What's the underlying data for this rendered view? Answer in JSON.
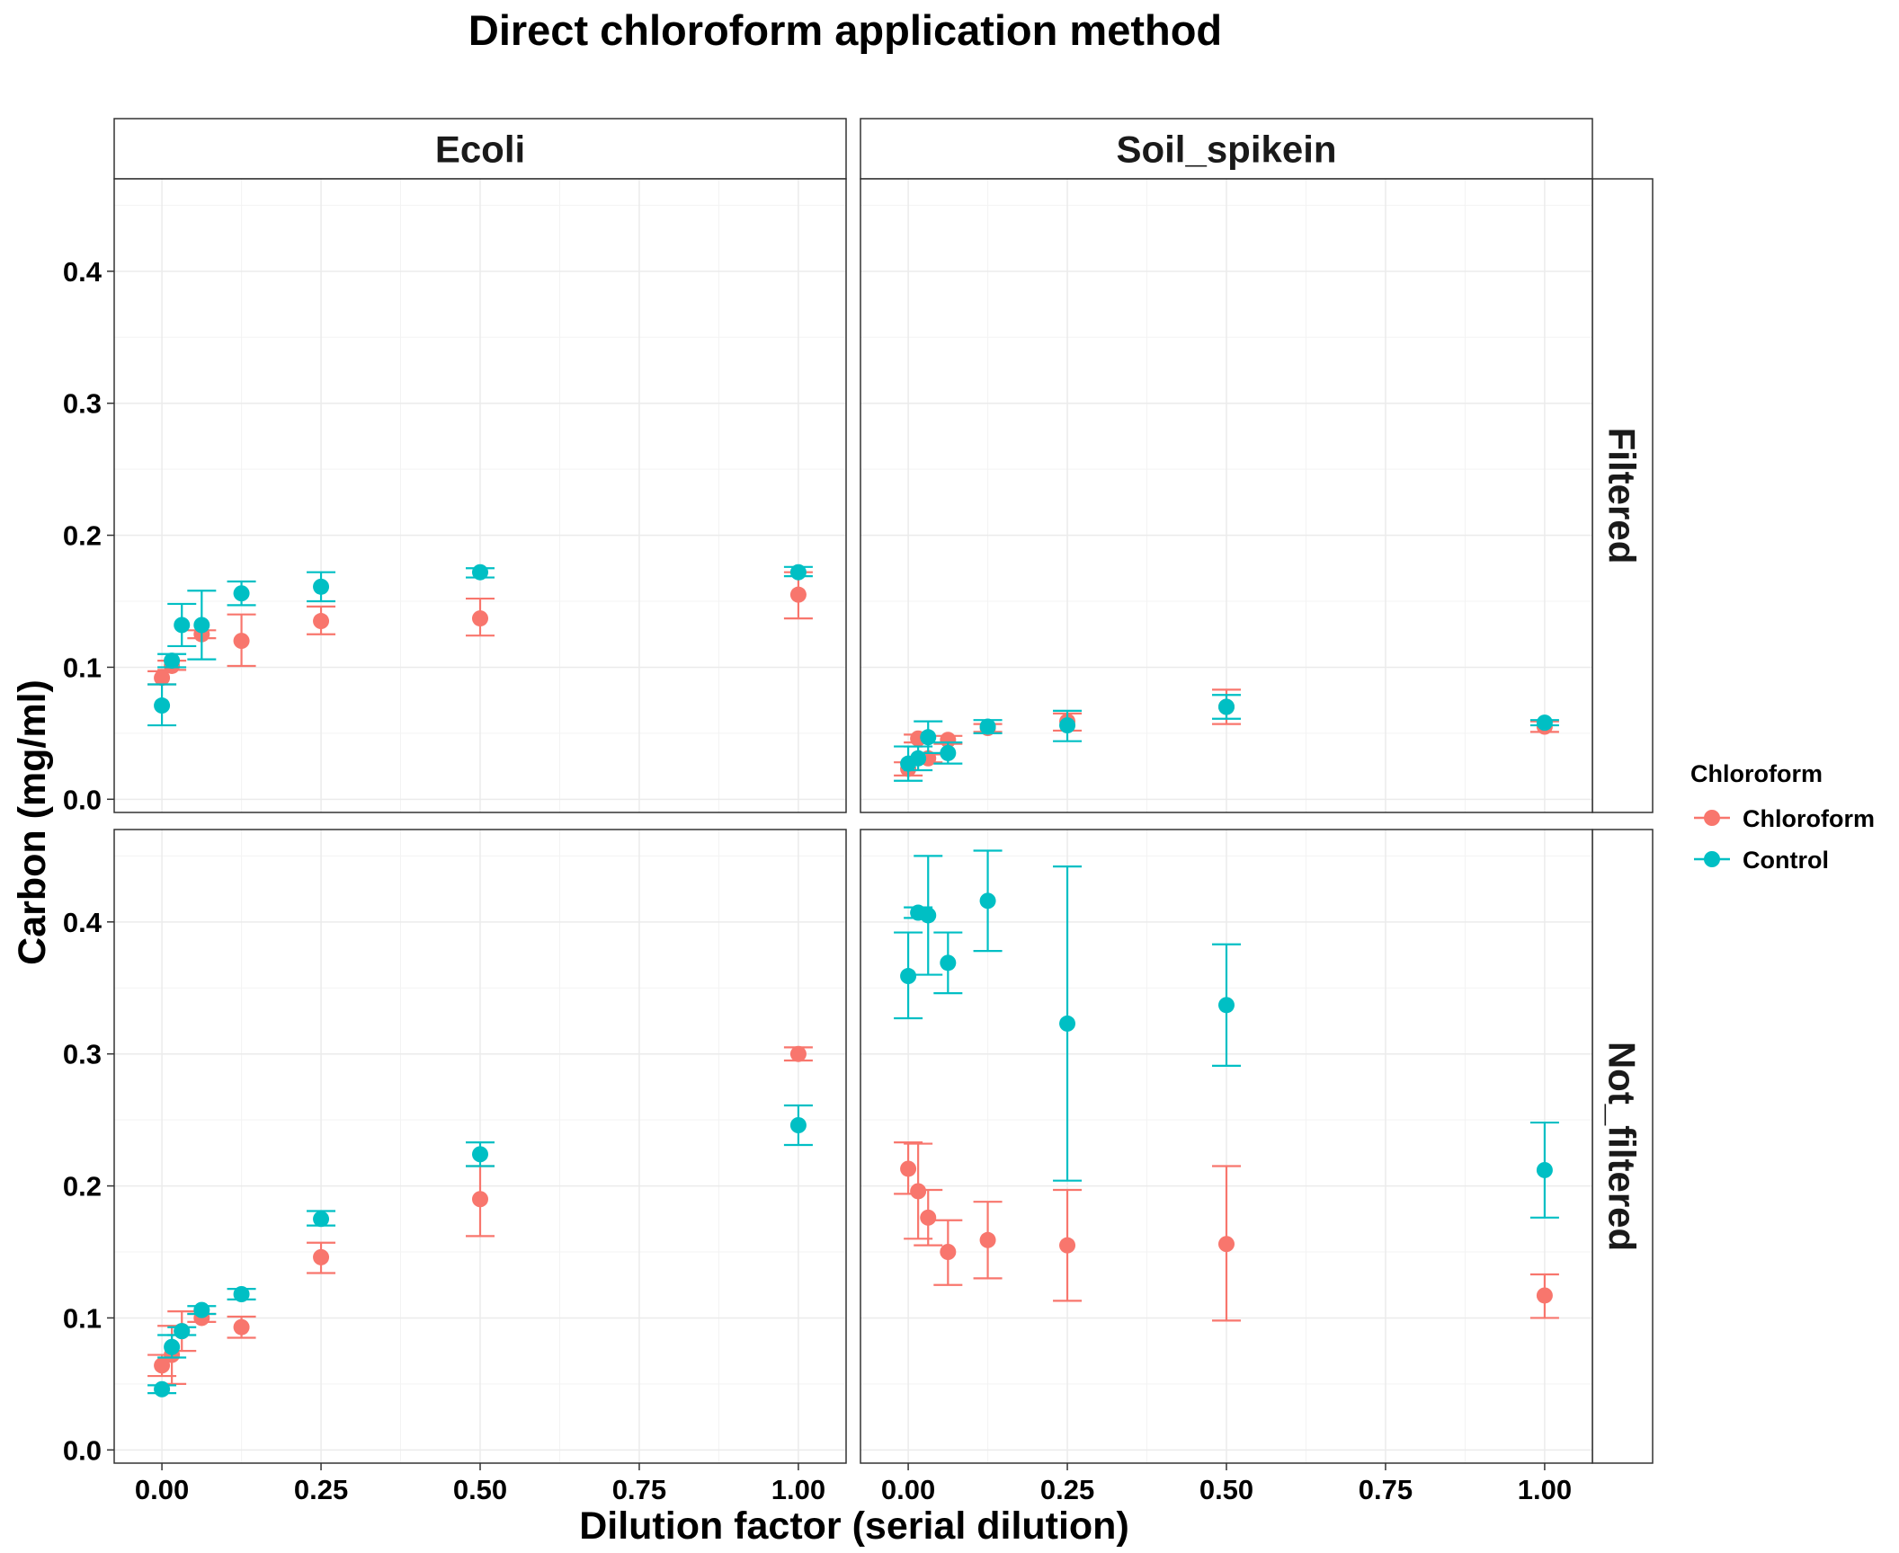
{
  "chart_data": {
    "type": "scatter",
    "title": "Direct chloroform application method",
    "xlabel": "Dilution factor (serial dilution)",
    "ylabel": "Carbon (mg/ml)",
    "xlim": [
      -0.075,
      1.075
    ],
    "ylim": [
      -0.01,
      0.47
    ],
    "x_ticks": [
      0,
      0.25,
      0.5,
      0.75,
      1
    ],
    "x_tick_labels": [
      "0.00",
      "0.25",
      "0.50",
      "0.75",
      "1.00"
    ],
    "y_ticks": [
      0,
      0.1,
      0.2,
      0.3,
      0.4
    ],
    "y_tick_labels": [
      "0.0",
      "0.1",
      "0.2",
      "0.3",
      "0.4"
    ],
    "facet_columns": [
      "Ecoli",
      "Soil_spikein"
    ],
    "facet_rows": [
      "Filtered",
      "Not_filtered"
    ],
    "grid": true,
    "legend": {
      "title": "Chloroform",
      "position": "right",
      "entries": [
        {
          "label": "Chloroform",
          "color": "#F8766D"
        },
        {
          "label": "Control",
          "color": "#00BFC4"
        }
      ]
    },
    "panels": [
      {
        "column": "Ecoli",
        "row": "Filtered",
        "series": [
          {
            "name": "Chloroform",
            "color": "#F8766D",
            "points": [
              {
                "x": 0.0,
                "y": 0.092,
                "ymin": 0.087,
                "ymax": 0.097
              },
              {
                "x": 0.0156,
                "y": 0.101,
                "ymin": 0.098,
                "ymax": 0.105
              },
              {
                "x": 0.0625,
                "y": 0.125,
                "ymin": 0.122,
                "ymax": 0.128
              },
              {
                "x": 0.125,
                "y": 0.12,
                "ymin": 0.101,
                "ymax": 0.14
              },
              {
                "x": 0.25,
                "y": 0.135,
                "ymin": 0.125,
                "ymax": 0.146
              },
              {
                "x": 0.5,
                "y": 0.137,
                "ymin": 0.124,
                "ymax": 0.152
              },
              {
                "x": 1.0,
                "y": 0.155,
                "ymin": 0.137,
                "ymax": 0.172
              }
            ]
          },
          {
            "name": "Control",
            "color": "#00BFC4",
            "points": [
              {
                "x": 0.0,
                "y": 0.071,
                "ymin": 0.056,
                "ymax": 0.087
              },
              {
                "x": 0.0156,
                "y": 0.105,
                "ymin": 0.1,
                "ymax": 0.11
              },
              {
                "x": 0.0313,
                "y": 0.132,
                "ymin": 0.116,
                "ymax": 0.148
              },
              {
                "x": 0.0625,
                "y": 0.132,
                "ymin": 0.106,
                "ymax": 0.158
              },
              {
                "x": 0.125,
                "y": 0.156,
                "ymin": 0.147,
                "ymax": 0.165
              },
              {
                "x": 0.25,
                "y": 0.161,
                "ymin": 0.15,
                "ymax": 0.172
              },
              {
                "x": 0.5,
                "y": 0.172,
                "ymin": 0.168,
                "ymax": 0.175
              },
              {
                "x": 1.0,
                "y": 0.172,
                "ymin": 0.169,
                "ymax": 0.176
              }
            ]
          }
        ]
      },
      {
        "column": "Soil_spikein",
        "row": "Filtered",
        "series": [
          {
            "name": "Chloroform",
            "color": "#F8766D",
            "points": [
              {
                "x": 0.0,
                "y": 0.023,
                "ymin": 0.018,
                "ymax": 0.028
              },
              {
                "x": 0.0156,
                "y": 0.046,
                "ymin": 0.043,
                "ymax": 0.049
              },
              {
                "x": 0.0313,
                "y": 0.031,
                "ymin": 0.028,
                "ymax": 0.034
              },
              {
                "x": 0.0625,
                "y": 0.045,
                "ymin": 0.042,
                "ymax": 0.048
              },
              {
                "x": 0.125,
                "y": 0.054,
                "ymin": 0.051,
                "ymax": 0.057
              },
              {
                "x": 0.25,
                "y": 0.059,
                "ymin": 0.052,
                "ymax": 0.065
              },
              {
                "x": 0.5,
                "y": 0.07,
                "ymin": 0.057,
                "ymax": 0.083
              },
              {
                "x": 1.0,
                "y": 0.055,
                "ymin": 0.051,
                "ymax": 0.059
              }
            ]
          },
          {
            "name": "Control",
            "color": "#00BFC4",
            "points": [
              {
                "x": 0.0,
                "y": 0.027,
                "ymin": 0.014,
                "ymax": 0.04
              },
              {
                "x": 0.0156,
                "y": 0.031,
                "ymin": 0.022,
                "ymax": 0.04
              },
              {
                "x": 0.0313,
                "y": 0.047,
                "ymin": 0.035,
                "ymax": 0.059
              },
              {
                "x": 0.0625,
                "y": 0.035,
                "ymin": 0.027,
                "ymax": 0.043
              },
              {
                "x": 0.125,
                "y": 0.055,
                "ymin": 0.05,
                "ymax": 0.06
              },
              {
                "x": 0.25,
                "y": 0.056,
                "ymin": 0.044,
                "ymax": 0.067
              },
              {
                "x": 0.5,
                "y": 0.07,
                "ymin": 0.061,
                "ymax": 0.079
              },
              {
                "x": 1.0,
                "y": 0.058,
                "ymin": 0.056,
                "ymax": 0.06
              }
            ]
          }
        ]
      },
      {
        "column": "Ecoli",
        "row": "Not_filtered",
        "series": [
          {
            "name": "Chloroform",
            "color": "#F8766D",
            "points": [
              {
                "x": 0.0,
                "y": 0.064,
                "ymin": 0.056,
                "ymax": 0.072
              },
              {
                "x": 0.0156,
                "y": 0.072,
                "ymin": 0.05,
                "ymax": 0.094
              },
              {
                "x": 0.0313,
                "y": 0.09,
                "ymin": 0.075,
                "ymax": 0.105
              },
              {
                "x": 0.0625,
                "y": 0.1,
                "ymin": 0.097,
                "ymax": 0.103
              },
              {
                "x": 0.125,
                "y": 0.093,
                "ymin": 0.085,
                "ymax": 0.101
              },
              {
                "x": 0.25,
                "y": 0.146,
                "ymin": 0.134,
                "ymax": 0.157
              },
              {
                "x": 0.5,
                "y": 0.19,
                "ymin": 0.162,
                "ymax": 0.215
              },
              {
                "x": 1.0,
                "y": 0.3,
                "ymin": 0.295,
                "ymax": 0.305
              }
            ]
          },
          {
            "name": "Control",
            "color": "#00BFC4",
            "points": [
              {
                "x": 0.0,
                "y": 0.046,
                "ymin": 0.043,
                "ymax": 0.049
              },
              {
                "x": 0.0156,
                "y": 0.078,
                "ymin": 0.07,
                "ymax": 0.087
              },
              {
                "x": 0.0313,
                "y": 0.09,
                "ymin": 0.087,
                "ymax": 0.093
              },
              {
                "x": 0.0625,
                "y": 0.106,
                "ymin": 0.103,
                "ymax": 0.109
              },
              {
                "x": 0.125,
                "y": 0.118,
                "ymin": 0.114,
                "ymax": 0.122
              },
              {
                "x": 0.25,
                "y": 0.175,
                "ymin": 0.17,
                "ymax": 0.181
              },
              {
                "x": 0.5,
                "y": 0.224,
                "ymin": 0.215,
                "ymax": 0.233
              },
              {
                "x": 1.0,
                "y": 0.246,
                "ymin": 0.231,
                "ymax": 0.261
              }
            ]
          }
        ]
      },
      {
        "column": "Soil_spikein",
        "row": "Not_filtered",
        "series": [
          {
            "name": "Chloroform",
            "color": "#F8766D",
            "points": [
              {
                "x": 0.0,
                "y": 0.213,
                "ymin": 0.194,
                "ymax": 0.233
              },
              {
                "x": 0.0156,
                "y": 0.196,
                "ymin": 0.16,
                "ymax": 0.232
              },
              {
                "x": 0.0313,
                "y": 0.176,
                "ymin": 0.155,
                "ymax": 0.197
              },
              {
                "x": 0.0625,
                "y": 0.15,
                "ymin": 0.125,
                "ymax": 0.174
              },
              {
                "x": 0.125,
                "y": 0.159,
                "ymin": 0.13,
                "ymax": 0.188
              },
              {
                "x": 0.25,
                "y": 0.155,
                "ymin": 0.113,
                "ymax": 0.197
              },
              {
                "x": 0.5,
                "y": 0.156,
                "ymin": 0.098,
                "ymax": 0.215
              },
              {
                "x": 1.0,
                "y": 0.117,
                "ymin": 0.1,
                "ymax": 0.133
              }
            ]
          },
          {
            "name": "Control",
            "color": "#00BFC4",
            "points": [
              {
                "x": 0.0,
                "y": 0.359,
                "ymin": 0.327,
                "ymax": 0.392
              },
              {
                "x": 0.0156,
                "y": 0.407,
                "ymin": 0.403,
                "ymax": 0.411
              },
              {
                "x": 0.0313,
                "y": 0.405,
                "ymin": 0.36,
                "ymax": 0.45
              },
              {
                "x": 0.0625,
                "y": 0.369,
                "ymin": 0.346,
                "ymax": 0.392
              },
              {
                "x": 0.125,
                "y": 0.416,
                "ymin": 0.378,
                "ymax": 0.454
              },
              {
                "x": 0.25,
                "y": 0.323,
                "ymin": 0.204,
                "ymax": 0.442
              },
              {
                "x": 0.5,
                "y": 0.337,
                "ymin": 0.291,
                "ymax": 0.383
              },
              {
                "x": 1.0,
                "y": 0.212,
                "ymin": 0.176,
                "ymax": 0.248
              }
            ]
          }
        ]
      }
    ]
  }
}
